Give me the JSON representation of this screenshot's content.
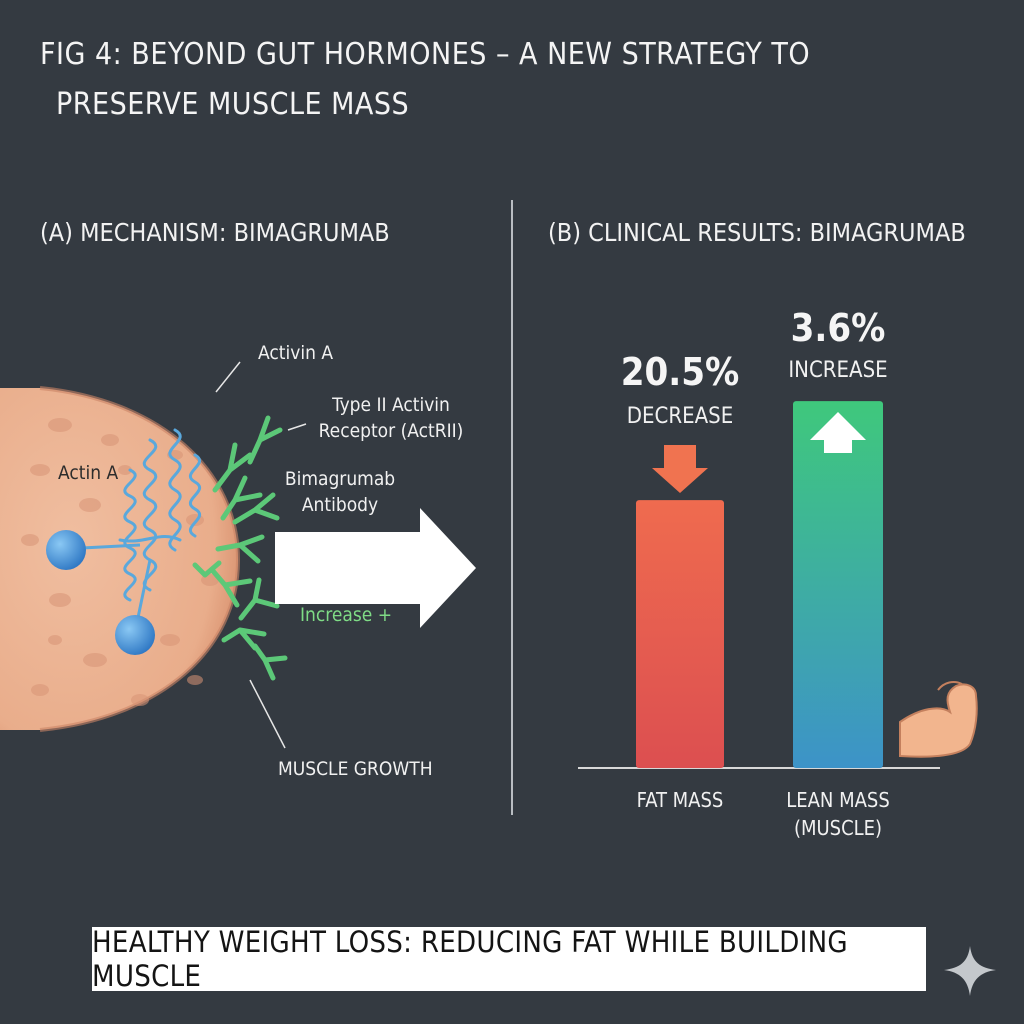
{
  "title": {
    "line1": "FIG 4: BEYOND GUT HORMONES – A NEW STRATEGY TO",
    "line2": "PRESERVE MUSCLE MASS"
  },
  "panel_a": {
    "heading": "(A) MECHANISM: BIMAGRUMAB",
    "labels": {
      "activin": "Activin A",
      "receptor_line1": "Type II Activin",
      "receptor_line2": "Receptor (ActRII)",
      "antibody_line1": "Bimagrumab",
      "antibody_line2": "Antibody",
      "actin": "Actin A",
      "increase": "Increase +",
      "growth": "MUSCLE GROWTH"
    },
    "colors": {
      "cell": "#e9b392",
      "helix": "#5aa8dc",
      "antibody": "#5cc878",
      "node": "#3f8fd6"
    }
  },
  "panel_b": {
    "heading": "(B) CLINICAL RESULTS: BIMAGRUMAB"
  },
  "chart_data": {
    "type": "bar",
    "categories": [
      "FAT MASS",
      "LEAN MASS (MUSCLE)"
    ],
    "category_lines": [
      [
        "FAT MASS"
      ],
      [
        "LEAN MASS",
        "(MUSCLE)"
      ]
    ],
    "values": [
      -20.5,
      3.6
    ],
    "value_labels": [
      "20.5%",
      "3.6%"
    ],
    "direction_labels": [
      "DECREASE",
      "INCREASE"
    ],
    "title": "(B) CLINICAL RESULTS: BIMAGRUMAB",
    "colors": {
      "fat_top": "#ef6b4f",
      "fat_bottom": "#dc4f50",
      "lean_top": "#3fc87c",
      "lean_bottom": "#3d93c8",
      "down_arrow": "#f07350",
      "up_arrow": "#ffffff"
    },
    "grid": false,
    "legend": "none"
  },
  "banner": {
    "text": "HEALTHY WEIGHT LOSS: REDUCING FAT WHILE BUILDING MUSCLE"
  },
  "icons": [
    "muscle-arm-icon",
    "sparkle-icon",
    "right-arrow-icon",
    "down-arrow-icon",
    "up-arrow-icon"
  ]
}
